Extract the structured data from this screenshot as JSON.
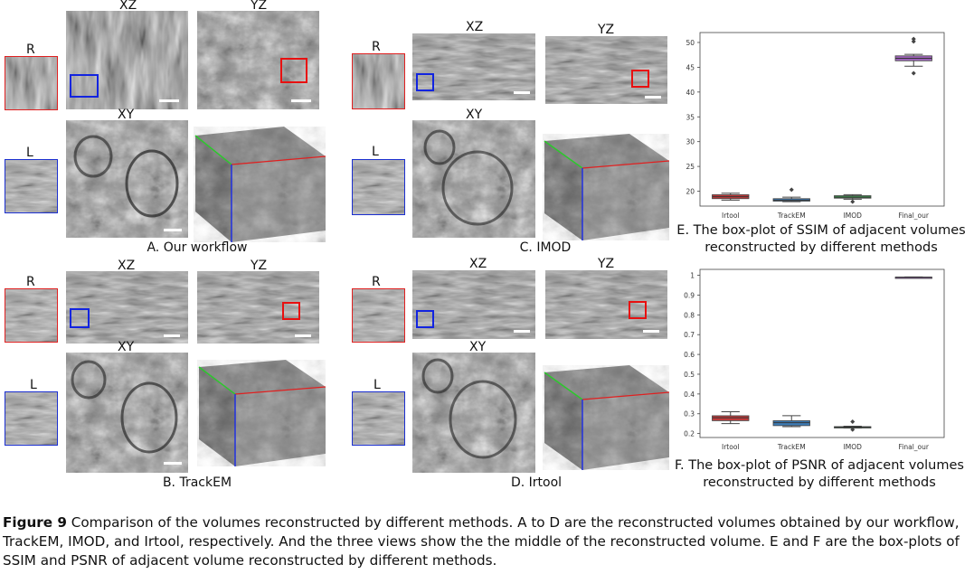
{
  "panels": {
    "A": {
      "caption": "A. Our workflow",
      "xz": "XZ",
      "yz": "YZ",
      "xy": "XY",
      "r": "R",
      "l": "L"
    },
    "B": {
      "caption": "B. TrackEM",
      "xz": "XZ",
      "yz": "YZ",
      "xy": "XY",
      "r": "R",
      "l": "L"
    },
    "C": {
      "caption": "C. IMOD",
      "xz": "XZ",
      "yz": "YZ",
      "xy": "XY",
      "r": "R",
      "l": "L"
    },
    "D": {
      "caption": "D. Irtool",
      "xz": "XZ",
      "yz": "YZ",
      "xy": "XY",
      "r": "R",
      "l": "L"
    }
  },
  "plot_e": {
    "caption_line1": "E. The box-plot of SSIM of adjacent volumes",
    "caption_line2": "reconstructed by different methods"
  },
  "plot_f": {
    "caption_line1": "F. The box-plot of PSNR of adjacent volumes",
    "caption_line2": "reconstructed by different methods"
  },
  "figure_caption": {
    "label": "Figure 9",
    "text": "Comparison of the volumes reconstructed by different methods. A to D are the reconstructed volumes obtained by our workflow, TrackEM, IMOD, and Irtool, respectively. And the three views show the the middle of the reconstructed volume. E and F are the box-plots of SSIM and PSNR of adjacent volume reconstructed by different methods."
  },
  "chart_data": [
    {
      "type": "box",
      "title": "",
      "categories": [
        "Irtool",
        "TrackEM",
        "IMOD",
        "Final_our"
      ],
      "yticks": [
        20,
        25,
        30,
        35,
        40,
        45,
        50
      ],
      "ylim": [
        17,
        52
      ],
      "colors": [
        "#c03c3c",
        "#3d7cb6",
        "#3e9c50",
        "#9c63b8"
      ],
      "boxes": [
        {
          "min": 18.2,
          "q1": 18.5,
          "median": 18.9,
          "q3": 19.3,
          "max": 19.6,
          "outliers": []
        },
        {
          "min": 17.9,
          "q1": 18.0,
          "median": 18.2,
          "q3": 18.5,
          "max": 18.8,
          "outliers": [
            20.3
          ]
        },
        {
          "min": 18.4,
          "q1": 18.6,
          "median": 18.8,
          "q3": 19.1,
          "max": 19.3,
          "outliers": [
            17.9
          ]
        },
        {
          "min": 45.2,
          "q1": 46.3,
          "median": 46.8,
          "q3": 47.3,
          "max": 47.6,
          "outliers": [
            50.2,
            50.7,
            43.8
          ]
        }
      ]
    },
    {
      "type": "box",
      "title": "",
      "categories": [
        "Irtool",
        "TrackEM",
        "IMOD",
        "Final_our"
      ],
      "yticks": [
        0.2,
        0.3,
        0.4,
        0.5,
        0.6,
        0.7,
        0.8,
        0.9,
        1.0
      ],
      "ylim": [
        0.18,
        1.03
      ],
      "colors": [
        "#c03c3c",
        "#3d7cb6",
        "#3e9c50",
        "#9c63b8"
      ],
      "boxes": [
        {
          "min": 0.25,
          "q1": 0.265,
          "median": 0.28,
          "q3": 0.29,
          "max": 0.31,
          "outliers": []
        },
        {
          "min": 0.235,
          "q1": 0.24,
          "median": 0.255,
          "q3": 0.265,
          "max": 0.29,
          "outliers": []
        },
        {
          "min": 0.228,
          "q1": 0.23,
          "median": 0.232,
          "q3": 0.235,
          "max": 0.237,
          "outliers": [
            0.26,
            0.22
          ]
        },
        {
          "min": 0.988,
          "q1": 0.989,
          "median": 0.99,
          "q3": 0.991,
          "max": 0.992,
          "outliers": []
        }
      ]
    }
  ]
}
